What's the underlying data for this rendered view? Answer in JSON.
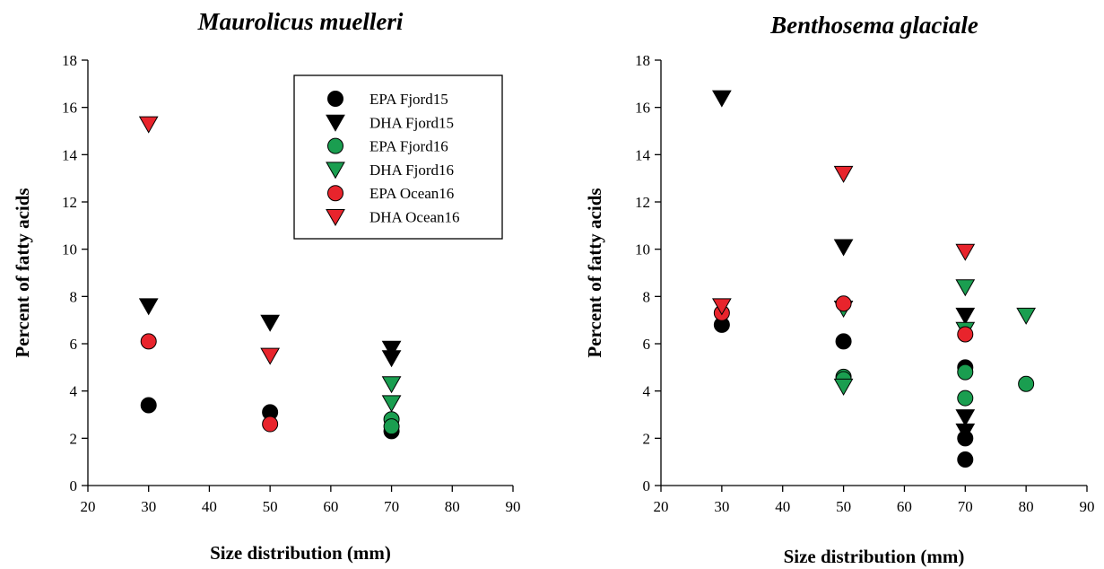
{
  "chart_data": [
    {
      "type": "scatter",
      "title": "Maurolicus muelleri",
      "xlabel": "Size distribution (mm)",
      "ylabel": "Percent of fatty acids",
      "xlim": [
        20,
        90
      ],
      "ylim": [
        0,
        18
      ],
      "xticks": [
        20,
        30,
        40,
        50,
        60,
        70,
        80,
        90
      ],
      "yticks": [
        0,
        2,
        4,
        6,
        8,
        10,
        12,
        14,
        16,
        18
      ],
      "grid": false,
      "legend": "top-right",
      "series": [
        {
          "name": "EPA Fjord15",
          "marker": "circle",
          "color": "#000000",
          "points": [
            [
              30,
              3.4
            ],
            [
              50,
              3.1
            ],
            [
              70,
              2.3
            ]
          ]
        },
        {
          "name": "DHA Fjord15",
          "marker": "triangle-down",
          "color": "#000000",
          "points": [
            [
              30,
              7.6
            ],
            [
              50,
              6.9
            ],
            [
              70,
              5.8
            ],
            [
              70,
              5.4
            ]
          ]
        },
        {
          "name": "EPA Fjord16",
          "marker": "circle",
          "color": "#1a9e50",
          "points": [
            [
              70,
              2.8
            ],
            [
              70,
              2.5
            ]
          ]
        },
        {
          "name": "DHA Fjord16",
          "marker": "triangle-down",
          "color": "#1a9e50",
          "points": [
            [
              70,
              4.3
            ],
            [
              70,
              3.5
            ]
          ]
        },
        {
          "name": "EPA Ocean16",
          "marker": "circle",
          "color": "#e8242c",
          "points": [
            [
              30,
              6.1
            ],
            [
              50,
              2.6
            ]
          ]
        },
        {
          "name": "DHA Ocean16",
          "marker": "triangle-down",
          "color": "#e8242c",
          "points": [
            [
              30,
              15.3
            ],
            [
              50,
              5.5
            ]
          ]
        }
      ]
    },
    {
      "type": "scatter",
      "title": "Benthosema glaciale",
      "xlabel": "Size distribution (mm)",
      "ylabel": "Percent of fatty acids",
      "xlim": [
        20,
        90
      ],
      "ylim": [
        0,
        18
      ],
      "xticks": [
        20,
        30,
        40,
        50,
        60,
        70,
        80,
        90
      ],
      "yticks": [
        0,
        2,
        4,
        6,
        8,
        10,
        12,
        14,
        16,
        18
      ],
      "grid": false,
      "series": [
        {
          "name": "EPA Fjord15",
          "marker": "circle",
          "color": "#000000",
          "points": [
            [
              30,
              6.8
            ],
            [
              50,
              6.1
            ],
            [
              70,
              5.0
            ],
            [
              70,
              2.0
            ],
            [
              70,
              1.1
            ]
          ]
        },
        {
          "name": "DHA Fjord15",
          "marker": "triangle-down",
          "color": "#000000",
          "points": [
            [
              30,
              16.4
            ],
            [
              50,
              10.1
            ],
            [
              70,
              7.2
            ],
            [
              70,
              2.9
            ],
            [
              70,
              2.3
            ]
          ]
        },
        {
          "name": "EPA Fjord16",
          "marker": "circle",
          "color": "#1a9e50",
          "points": [
            [
              50,
              4.6
            ],
            [
              50,
              4.5
            ],
            [
              70,
              4.8
            ],
            [
              70,
              3.7
            ],
            [
              80,
              4.3
            ]
          ]
        },
        {
          "name": "DHA Fjord16",
          "marker": "triangle-down",
          "color": "#1a9e50",
          "points": [
            [
              50,
              7.5
            ],
            [
              50,
              4.2
            ],
            [
              70,
              8.4
            ],
            [
              70,
              6.6
            ],
            [
              80,
              7.2
            ]
          ]
        },
        {
          "name": "EPA Ocean16",
          "marker": "circle",
          "color": "#e8242c",
          "points": [
            [
              30,
              7.3
            ],
            [
              50,
              7.7
            ],
            [
              70,
              6.4
            ]
          ]
        },
        {
          "name": "DHA Ocean16",
          "marker": "triangle-down",
          "color": "#e8242c",
          "points": [
            [
              30,
              7.6
            ],
            [
              50,
              13.2
            ],
            [
              70,
              9.9
            ]
          ]
        }
      ]
    }
  ]
}
